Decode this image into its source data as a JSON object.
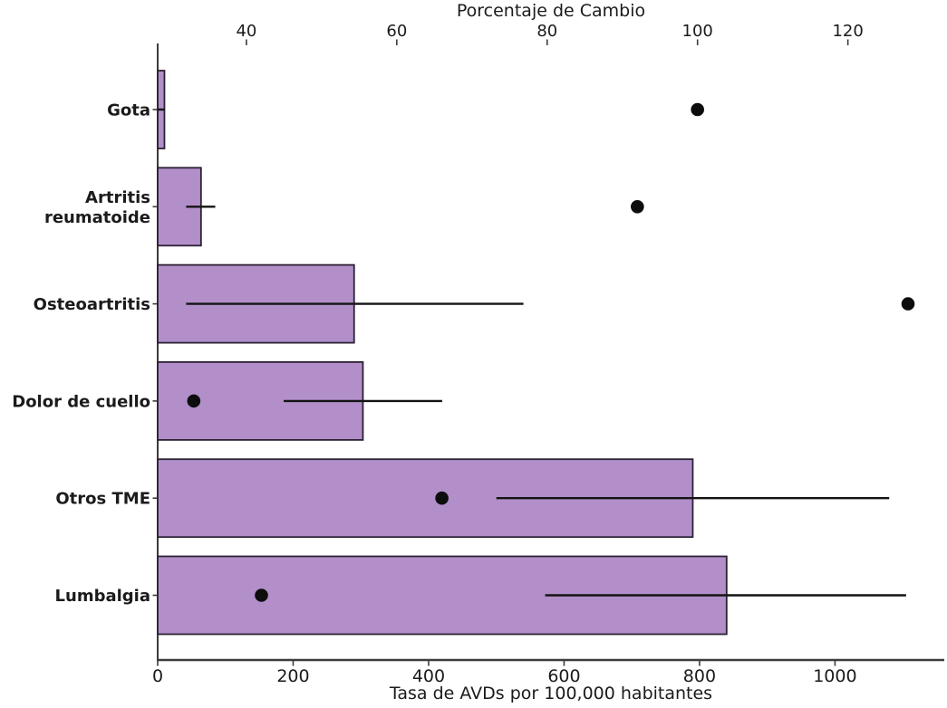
{
  "chart_data": {
    "type": "bar",
    "orientation": "horizontal",
    "grid": false,
    "legend": "none",
    "categories": [
      "Gota",
      "Artritis reumatoide",
      "Osteoartritis",
      "Dolor de cuello",
      "Otros TME",
      "Lumbalgia"
    ],
    "category_label_lines": [
      [
        "Gota"
      ],
      [
        "Artritis",
        "reumatoide"
      ],
      [
        "Osteoartritis"
      ],
      [
        "Dolor de cuello"
      ],
      [
        "Otros TME"
      ],
      [
        "Lumbalgia"
      ]
    ],
    "series": [
      {
        "name": "Tasa de AVDs por 100,000 habitantes",
        "kind": "bar",
        "axis": "bottom",
        "values": [
          10,
          64,
          290,
          303,
          790,
          840
        ],
        "error_low": [
          0,
          42,
          42,
          186,
          500,
          572
        ],
        "error_high": [
          10,
          85,
          540,
          420,
          1080,
          1105
        ]
      },
      {
        "name": "Porcentaje de Cambio",
        "kind": "scatter",
        "axis": "top",
        "values": [
          100,
          92,
          128,
          33,
          66,
          42
        ]
      }
    ],
    "bottom_axis": {
      "label": "Tasa de AVDs por 100,000 habitantes",
      "ticks": [
        0,
        200,
        400,
        600,
        800,
        1000
      ],
      "range": [
        0,
        1160
      ]
    },
    "top_axis": {
      "label": "Porcentaje de Cambio",
      "ticks": [
        40,
        60,
        80,
        100,
        120
      ],
      "range": [
        28.2,
        132.7
      ]
    },
    "colors": {
      "bar_fill": "#b28fc9",
      "bar_edge": "#2c2135",
      "dot": "#0d0d0d",
      "error_line": "#141414",
      "axis": "#3c3c3c",
      "text": "#1b1b1b",
      "background": "#ffffff"
    }
  }
}
